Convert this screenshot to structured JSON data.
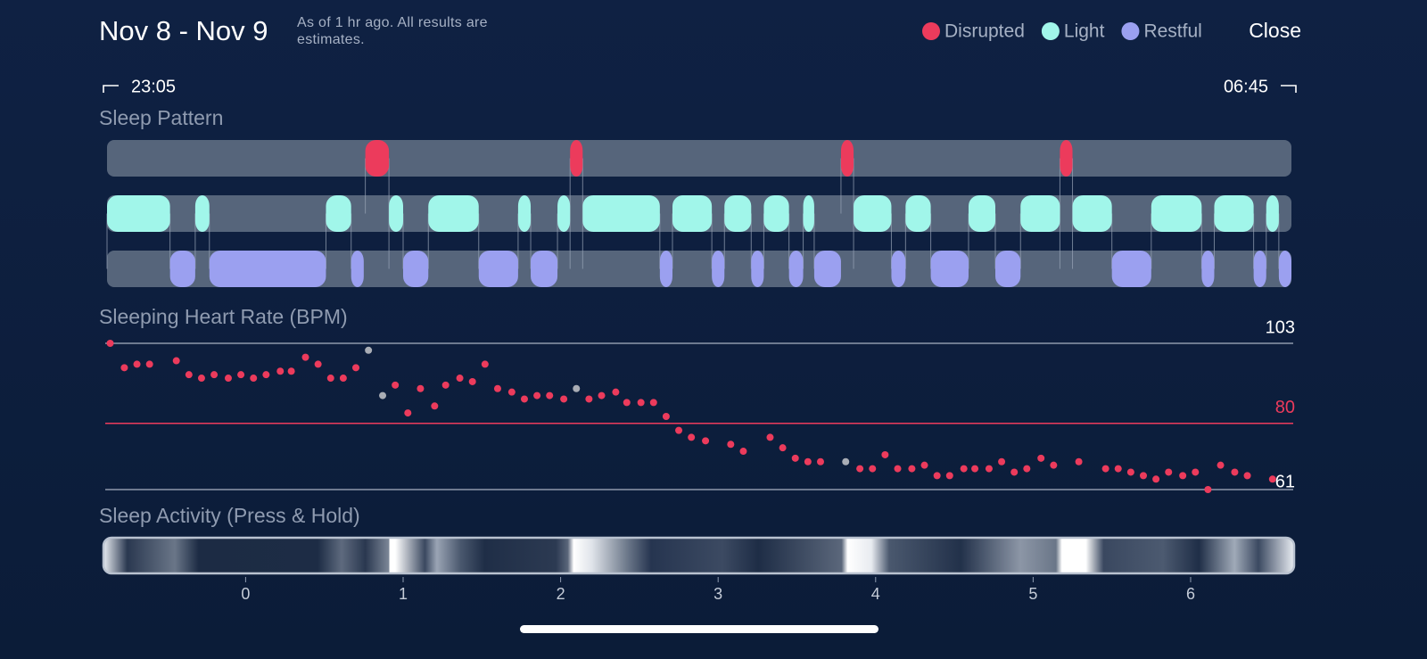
{
  "header": {
    "title": "Nov 8 - Nov 9",
    "note": "As of 1 hr ago. All results are estimates.",
    "close": "Close"
  },
  "time_range": {
    "start": "23:05",
    "end": "06:45"
  },
  "xlim": [
    -0.88,
    6.64
  ],
  "xticks": [
    0,
    1,
    2,
    3,
    4,
    5,
    6
  ],
  "sleep_pattern": {
    "title": "Sleep Pattern",
    "stages": [
      {
        "name": "Disrupted",
        "color": "#ec3b5c",
        "segments": [
          [
            0.76,
            0.91
          ],
          [
            2.06,
            2.14
          ],
          [
            3.78,
            3.86
          ],
          [
            5.17,
            5.25
          ]
        ]
      },
      {
        "name": "Light",
        "color": "#a1f6ea",
        "segments": [
          [
            -0.88,
            -0.48
          ],
          [
            -0.32,
            -0.23
          ],
          [
            0.51,
            0.67
          ],
          [
            0.91,
            1.0
          ],
          [
            1.16,
            1.48
          ],
          [
            1.73,
            1.81
          ],
          [
            1.98,
            2.06
          ],
          [
            2.14,
            2.63
          ],
          [
            2.71,
            2.96
          ],
          [
            3.04,
            3.21
          ],
          [
            3.29,
            3.45
          ],
          [
            3.54,
            3.61
          ],
          [
            3.86,
            4.1
          ],
          [
            4.19,
            4.35
          ],
          [
            4.59,
            4.76
          ],
          [
            4.92,
            5.17
          ],
          [
            5.25,
            5.5
          ],
          [
            5.75,
            6.07
          ],
          [
            6.15,
            6.4
          ],
          [
            6.48,
            6.56
          ]
        ]
      },
      {
        "name": "Restful",
        "color": "#9ba0f0",
        "segments": [
          [
            -0.48,
            -0.32
          ],
          [
            -0.23,
            0.51
          ],
          [
            0.67,
            0.75
          ],
          [
            1.0,
            1.16
          ],
          [
            1.48,
            1.73
          ],
          [
            1.81,
            1.98
          ],
          [
            2.63,
            2.71
          ],
          [
            2.96,
            3.04
          ],
          [
            3.21,
            3.29
          ],
          [
            3.45,
            3.54
          ],
          [
            3.61,
            3.78
          ],
          [
            4.1,
            4.19
          ],
          [
            4.35,
            4.59
          ],
          [
            4.76,
            4.92
          ],
          [
            5.5,
            5.75
          ],
          [
            6.07,
            6.15
          ],
          [
            6.4,
            6.48
          ],
          [
            6.56,
            6.64
          ]
        ]
      }
    ]
  },
  "heart_rate": {
    "title": "Sleeping Heart Rate (BPM)",
    "type": "scatter",
    "ylim": [
      61,
      103
    ],
    "yticks": [
      61,
      80,
      103
    ],
    "tick_colors": [
      "#8f98ab",
      "#ec3b5c",
      "#8f98ab"
    ],
    "series": [
      {
        "color": "#ec3b5c",
        "x": [
          -0.86,
          -0.77,
          -0.69,
          -0.61,
          -0.44,
          -0.36,
          -0.28,
          -0.2,
          -0.11,
          -0.03,
          0.05,
          0.13,
          0.22,
          0.29,
          0.38,
          0.46,
          0.54,
          0.62,
          0.7,
          0.95,
          1.03,
          1.11,
          1.2,
          1.27,
          1.36,
          1.44,
          1.52,
          1.6,
          1.69,
          1.77,
          1.85,
          1.93,
          2.02,
          2.18,
          2.26,
          2.35,
          2.42,
          2.51,
          2.59,
          2.67,
          2.75,
          2.83,
          2.92,
          3.08,
          3.16,
          3.33,
          3.41,
          3.49,
          3.57,
          3.65,
          3.9,
          3.98,
          4.06,
          4.14,
          4.23,
          4.31,
          4.39,
          4.47,
          4.56,
          4.63,
          4.72,
          4.8,
          4.88,
          4.96,
          5.05,
          5.13,
          5.29,
          5.46,
          5.54,
          5.62,
          5.7,
          5.78,
          5.86,
          5.95,
          6.03,
          6.11,
          6.19,
          6.28,
          6.36,
          6.52
        ],
        "values": [
          103,
          96,
          97,
          97,
          98,
          94,
          93,
          94,
          93,
          94,
          93,
          94,
          95,
          95,
          99,
          97,
          93,
          93,
          96,
          91,
          83,
          90,
          85,
          91,
          93,
          92,
          97,
          90,
          89,
          87,
          88,
          88,
          87,
          87,
          88,
          89,
          86,
          86,
          86,
          82,
          78,
          76,
          75,
          74,
          72,
          76,
          73,
          70,
          69,
          69,
          67,
          67,
          71,
          67,
          67,
          68,
          65,
          65,
          67,
          67,
          67,
          69,
          66,
          67,
          70,
          68,
          69,
          67,
          67,
          66,
          65,
          64,
          66,
          65,
          66,
          61,
          68,
          66,
          65,
          64
        ]
      },
      {
        "color": "#a9adb5",
        "x": [
          0.78,
          0.87,
          2.1,
          3.81
        ],
        "values": [
          101,
          88,
          90,
          69
        ]
      }
    ]
  },
  "activity": {
    "title": "Sleep Activity (Press & Hold)"
  }
}
